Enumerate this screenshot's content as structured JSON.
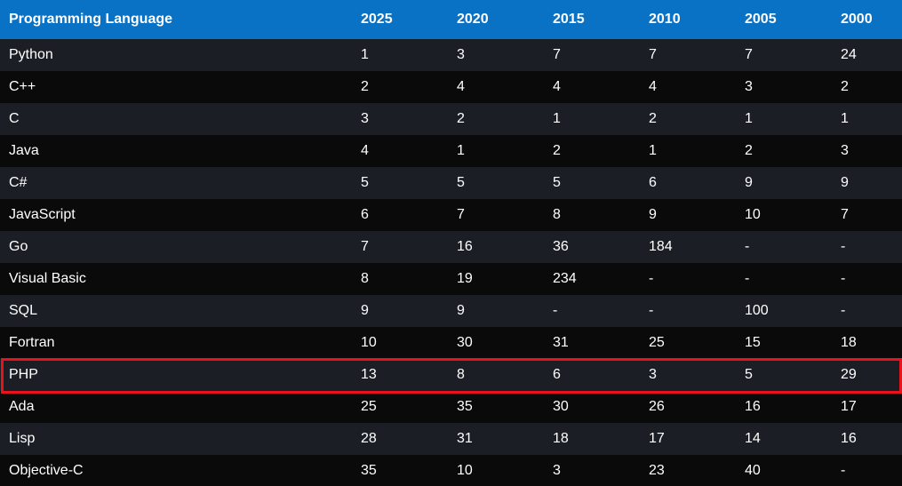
{
  "table": {
    "headers": [
      "Programming Language",
      "2025",
      "2020",
      "2015",
      "2010",
      "2005",
      "2000"
    ],
    "rows": [
      [
        "Python",
        "1",
        "3",
        "7",
        "7",
        "7",
        "24"
      ],
      [
        "C++",
        "2",
        "4",
        "4",
        "4",
        "3",
        "2"
      ],
      [
        "C",
        "3",
        "2",
        "1",
        "2",
        "1",
        "1"
      ],
      [
        "Java",
        "4",
        "1",
        "2",
        "1",
        "2",
        "3"
      ],
      [
        "C#",
        "5",
        "5",
        "5",
        "6",
        "9",
        "9"
      ],
      [
        "JavaScript",
        "6",
        "7",
        "8",
        "9",
        "10",
        "7"
      ],
      [
        "Go",
        "7",
        "16",
        "36",
        "184",
        "-",
        "-"
      ],
      [
        "Visual Basic",
        "8",
        "19",
        "234",
        "-",
        "-",
        "-"
      ],
      [
        "SQL",
        "9",
        "9",
        "-",
        "-",
        "100",
        "-"
      ],
      [
        "Fortran",
        "10",
        "30",
        "31",
        "25",
        "15",
        "18"
      ],
      [
        "PHP",
        "13",
        "8",
        "6",
        "3",
        "5",
        "29"
      ],
      [
        "Ada",
        "25",
        "35",
        "30",
        "26",
        "16",
        "17"
      ],
      [
        "Lisp",
        "28",
        "31",
        "18",
        "17",
        "14",
        "16"
      ],
      [
        "Objective-C",
        "35",
        "10",
        "3",
        "23",
        "40",
        "-"
      ]
    ],
    "highlighted_row": "PHP"
  },
  "colors": {
    "header_bg": "#0a72c4",
    "row_odd_bg": "#1b1f25",
    "row_even_bg": "#0a0a0a",
    "highlight_border": "#e8121a",
    "text": "#ffffff"
  }
}
